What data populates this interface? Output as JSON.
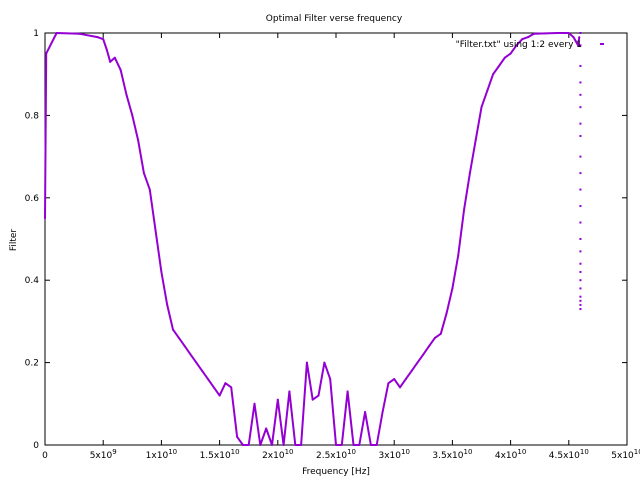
{
  "chart_data": {
    "type": "scatter",
    "title": "Optimal Filter verse frequency",
    "xlabel": "Frequency [Hz]",
    "ylabel": "Filter",
    "xlim": [
      0,
      50000000000
    ],
    "ylim": [
      0,
      1
    ],
    "grid": false,
    "legend_position": "top-right",
    "x_ticks": [
      {
        "value": 0,
        "label": "0",
        "exp": ""
      },
      {
        "value": 5000000000,
        "label": "5x10",
        "exp": "9"
      },
      {
        "value": 10000000000,
        "label": "1x10",
        "exp": "10"
      },
      {
        "value": 15000000000,
        "label": "1.5x10",
        "exp": "10"
      },
      {
        "value": 20000000000,
        "label": "2x10",
        "exp": "10"
      },
      {
        "value": 25000000000,
        "label": "2.5x10",
        "exp": "10"
      },
      {
        "value": 30000000000,
        "label": "3x10",
        "exp": "10"
      },
      {
        "value": 35000000000,
        "label": "3.5x10",
        "exp": "10"
      },
      {
        "value": 40000000000,
        "label": "4x10",
        "exp": "10"
      },
      {
        "value": 45000000000,
        "label": "4.5x10",
        "exp": "10"
      },
      {
        "value": 50000000000,
        "label": "5x10",
        "exp": "10"
      }
    ],
    "y_ticks": [
      {
        "value": 0,
        "label": "0"
      },
      {
        "value": 0.2,
        "label": "0.2"
      },
      {
        "value": 0.4,
        "label": "0.4"
      },
      {
        "value": 0.6,
        "label": "0.6"
      },
      {
        "value": 0.8,
        "label": "0.8"
      },
      {
        "value": 1,
        "label": "1"
      }
    ],
    "series": [
      {
        "name": "\"Filter.txt\" using 1:2 every 1",
        "color": "#9400d3",
        "x": [
          0,
          100000000,
          1000000000,
          3000000000,
          4500000000,
          5000000000,
          5300000000,
          5600000000,
          6000000000,
          6500000000,
          7000000000,
          7500000000,
          8000000000,
          8500000000,
          9000000000,
          9500000000,
          10000000000,
          10500000000,
          11000000000,
          11500000000,
          12000000000,
          12500000000,
          13000000000,
          13500000000,
          14000000000,
          14500000000,
          15000000000,
          15500000000,
          16000000000,
          16500000000,
          17000000000,
          17500000000,
          18000000000,
          18500000000,
          19000000000,
          19500000000,
          20000000000,
          20500000000,
          21000000000,
          21500000000,
          22000000000,
          22500000000,
          23000000000,
          23500000000,
          24000000000,
          24500000000,
          25000000000,
          25500000000,
          26000000000,
          26500000000,
          27000000000,
          27500000000,
          28000000000,
          28500000000,
          29000000000,
          29500000000,
          30000000000,
          30500000000,
          31000000000,
          31500000000,
          32000000000,
          32500000000,
          33000000000,
          33500000000,
          34000000000,
          34500000000,
          35000000000,
          35500000000,
          36000000000,
          36500000000,
          37000000000,
          37500000000,
          38000000000,
          38500000000,
          39000000000,
          39500000000,
          40000000000,
          40500000000,
          41000000000,
          41500000000,
          42000000000,
          43000000000,
          44000000000,
          45000000000,
          45400000000,
          45600000000,
          45800000000,
          45900000000
        ],
        "y": [
          0.55,
          0.95,
          1.0,
          0.998,
          0.99,
          0.985,
          0.96,
          0.93,
          0.94,
          0.91,
          0.85,
          0.8,
          0.74,
          0.66,
          0.62,
          0.52,
          0.42,
          0.34,
          0.28,
          0.26,
          0.24,
          0.22,
          0.2,
          0.18,
          0.16,
          0.14,
          0.12,
          0.15,
          0.14,
          0.02,
          0.0,
          0.0,
          0.1,
          0.0,
          0.04,
          0.0,
          0.11,
          0.0,
          0.13,
          0.0,
          0.0,
          0.2,
          0.11,
          0.12,
          0.2,
          0.16,
          0.0,
          0.0,
          0.13,
          0.0,
          0.0,
          0.08,
          0.0,
          0.0,
          0.08,
          0.15,
          0.16,
          0.14,
          0.16,
          0.18,
          0.2,
          0.22,
          0.24,
          0.26,
          0.27,
          0.32,
          0.38,
          0.46,
          0.57,
          0.66,
          0.74,
          0.82,
          0.86,
          0.9,
          0.92,
          0.94,
          0.95,
          0.97,
          0.985,
          0.99,
          0.998,
          0.999,
          1.0,
          1.0,
          0.99,
          0.98,
          0.97,
          0.99
        ]
      }
    ],
    "scatter_column": {
      "x": 46000000000,
      "y": [
        1.0,
        0.97,
        0.92,
        0.88,
        0.85,
        0.82,
        0.78,
        0.75,
        0.7,
        0.66,
        0.62,
        0.58,
        0.54,
        0.5,
        0.47,
        0.44,
        0.42,
        0.4,
        0.38,
        0.36,
        0.35,
        0.34,
        0.33
      ]
    }
  }
}
